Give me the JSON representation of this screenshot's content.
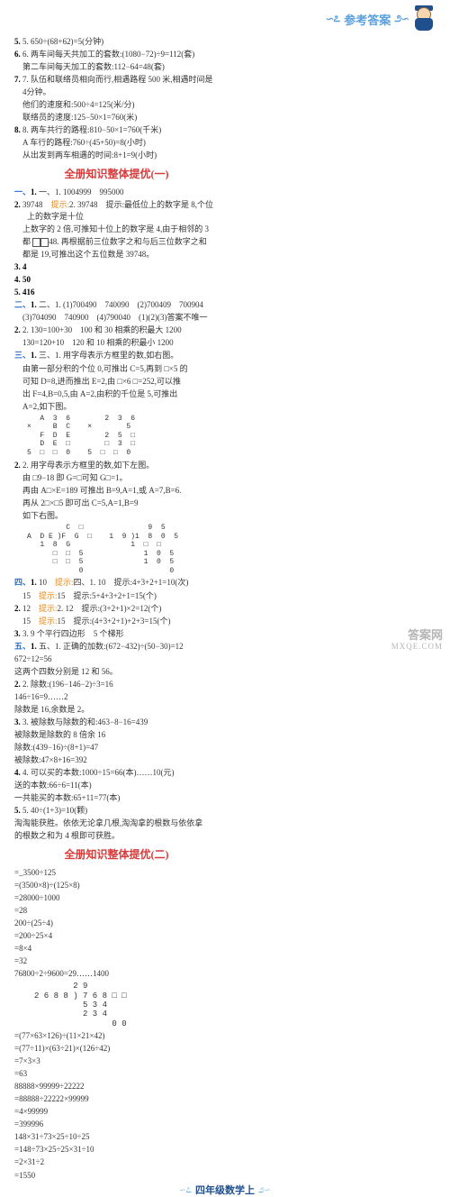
{
  "header": {
    "title": "参考答案"
  },
  "footer": {
    "text": "四年级数学上"
  },
  "watermark": {
    "line1": "答案网",
    "line2": "MXQE.COM"
  },
  "section_headers": {
    "s1": "全册知识整体提优(一)",
    "s2": "全册知识整体提优(二)"
  },
  "left_top": {
    "l5": "5. 650÷(68+62)=5(分钟)",
    "l6a": "6. 两车间每天共加工的套数:(1080−72)÷9=112(套)",
    "l6b": "第二车间每天加工的套数:112−64=48(套)",
    "l7a": "7. 队伍和联络员相向而行,相遇路程 500 米,相遇时间是",
    "l7b": "4分钟。",
    "l7c": "他们的速度和:500÷4=125(米/分)",
    "l7d": "联络员的速度:125−50×1=760(米)",
    "l8a": "8. 两车共行的路程:810−50×1=760(千米)",
    "l8b": "A 车行的路程:760÷(45+50)=8(小时)",
    "l8c": "从出发到两车相遇的时间:8+1=9(小时)"
  },
  "sec1_1": {
    "yi": "一、1. 1004999　995000",
    "l2a": "2. 39748　提示:最低位上的数字是 8,个位上的数字是十位",
    "l2b": "上数字的 2 倍,可推知十位上的数字是 4,由于相邻的 3",
    "l2c": "都",
    "l2d": "48. 再根据前三位数字之和与后三位数字之和",
    "l2e": "都是 19,可推出这个五位数是 39748。",
    "l3": "3. 4",
    "l4": "4. 50",
    "l5": "5. 416"
  },
  "sec1_2": {
    "er": "二、1. (1)700490　740090　(2)700409　700904",
    "l1b": "(3)704090　740900　(4)790040　(1)(2)(3)答案不唯一",
    "l2a": "2. 130=100+30　100 和 30 相乘的积最大 1200",
    "l2b": "130=120+10　120 和 10 相乘的积最小 1200"
  },
  "sec1_3": {
    "san1a": "三、1. 用字母表示方框里的数,如右图。",
    "san1b": "由第一部分积的个位 0,可推出 C=5,再到 □×5 的",
    "san1c": "可知 D=8,进而推出 E=2,由 □×6 □=252,可以推",
    "san1d": "出 F=4,B=0,5,由 A=2,由积的千位是 5,可推出",
    "san1e": "A=2,如下图。",
    "san2a": "2. 用字母表示方框里的数,如下左图。",
    "san2b": "由 □9−18 即 G=□可知 G□=1。",
    "san2c": "再由 A□×E=189 可推出 B=9,A=1,或 A=7,B=6.",
    "san2d": "再从 2□×□5 即可出 C=5,A=1,B=9",
    "san2e": "如下右图。"
  },
  "grid1_left": {
    "r1": "   A  3  6        2  3  6",
    "r2": "×     B  C    ×        5",
    "r3": "   F  D  E        2  5  □",
    "r4": "   D  E  □        □  3  □",
    "r5": "5  □  □  0    5  □  □  0"
  },
  "grid2_left": {
    "r1": "         C  □               9  5",
    "r2": "A  D E )F  G  □    1  9 )1  8  0  5",
    "r3": "   1  8  G              1  □  □",
    "r4": "      □  □  5              1  0  5",
    "r5": "      □  □  5              1  0  5",
    "r6": "            0                    0"
  },
  "sec1_4": {
    "si1": "四、1. 10　提示:4+3+2+1=10(次)",
    "si2": "15　提示:5+4+3+2+1=15(个)"
  },
  "right_top": {
    "r2_12": "2. 12　提示:(3+2+1)×2=12(个)",
    "r15": "15　提示:(4+3+2+1)+2+3=15(个)",
    "r3": "3. 9 个平行四边形　5 个梯形"
  },
  "sec1_5": {
    "wu1a": "五、1. 正确的加数:(672−432)÷(50−30)=12",
    "wu1b": "672÷12=56",
    "wu1c": "这两个四数分别是 12 和 56。",
    "wu2a": "2. 除数:(196−146−2)÷3=16",
    "wu2b": "146÷16=9……2",
    "wu2c": "除数是 16,余数是 2。",
    "wu3a": "3. 被除数与除数的和:463−8−16=439",
    "wu3b": "被除数是除数的 8 倍余 16",
    "wu3c": "除数:(439−16)÷(8+1)=47",
    "wu3d": "被除数:47×8+16=392",
    "wu4a": "4. 可以买的本数:1000÷15=66(本)……10(元)",
    "wu4b": "送的本数:66÷6=11(本)",
    "wu4c": "一共能买的本数:65+11=77(本)",
    "wu5a": "5. 40÷(1+3)=10(颗)",
    "wu5b": "淘淘能获胜。依依无论拿几根,淘淘拿的根数与依依拿",
    "wu5c": "的根数之和为 4 根即可获胜。"
  },
  "sec2": {
    "eq_top": "=_3500÷125",
    "a1": "=(3500×8)÷(125×8)",
    "a2": "=28000÷1000",
    "a3": "=28",
    "b1": "200÷(25÷4)",
    "b2": "=200÷25×4",
    "b3": "=8×4",
    "b4": "=32",
    "c1": "76800÷2÷9600=29……1400",
    "d1": "=(77×63×126)÷(11×21×42)",
    "d2": "=(77÷11)×(63÷21)×(126÷42)",
    "d3": "=7×3×3",
    "d4": "=63",
    "e1": "88888×99999÷22222",
    "e2": "=88888÷22222×99999",
    "e3": "=4×99999",
    "e4": "=399996",
    "f1": "148×31÷73×25÷10÷25",
    "f2": "=148÷73×25÷25×31÷10",
    "f3": "=2×31÷2",
    "f4": "=1550"
  },
  "longdiv": {
    "r1": "        2 9",
    "r2": "2 6 8 8 ) 7 6 8 □ □",
    "r3": "          5 3 4",
    "r4": "          2 3 4",
    "r5": "                0 0"
  }
}
